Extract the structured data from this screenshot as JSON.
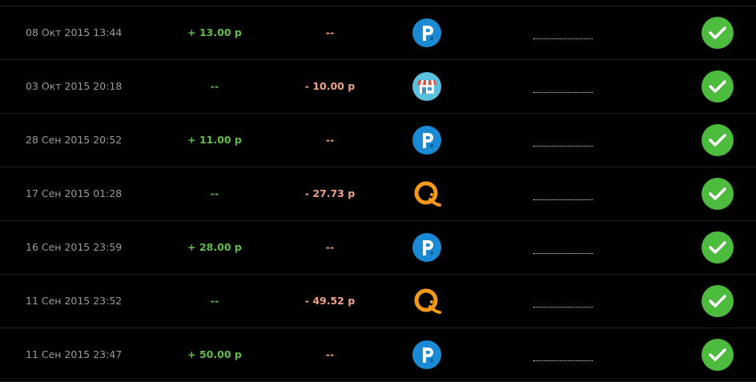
{
  "rows": [
    {
      "date": "08 Окт 2015 13:44",
      "income": "+ 13.00 р",
      "expense": "--"
    },
    {
      "date": "03 Окт 2015 20:18",
      "income": "--",
      "expense": "- 10.00 р"
    },
    {
      "date": "28 Сен 2015 20:52",
      "income": "+ 11.00 р",
      "expense": "--"
    },
    {
      "date": "17 Сен 2015 01:28",
      "income": "--",
      "expense": "- 27.73 р"
    },
    {
      "date": "16 Сен 2015 23:59",
      "income": "+ 28.00 р",
      "expense": "--"
    },
    {
      "date": "11 Сен 2015 23:52",
      "income": "--",
      "expense": "- 49.52 р"
    },
    {
      "date": "11 Сен 2015 23:47",
      "income": "+ 50.00 р",
      "expense": "--"
    }
  ]
}
